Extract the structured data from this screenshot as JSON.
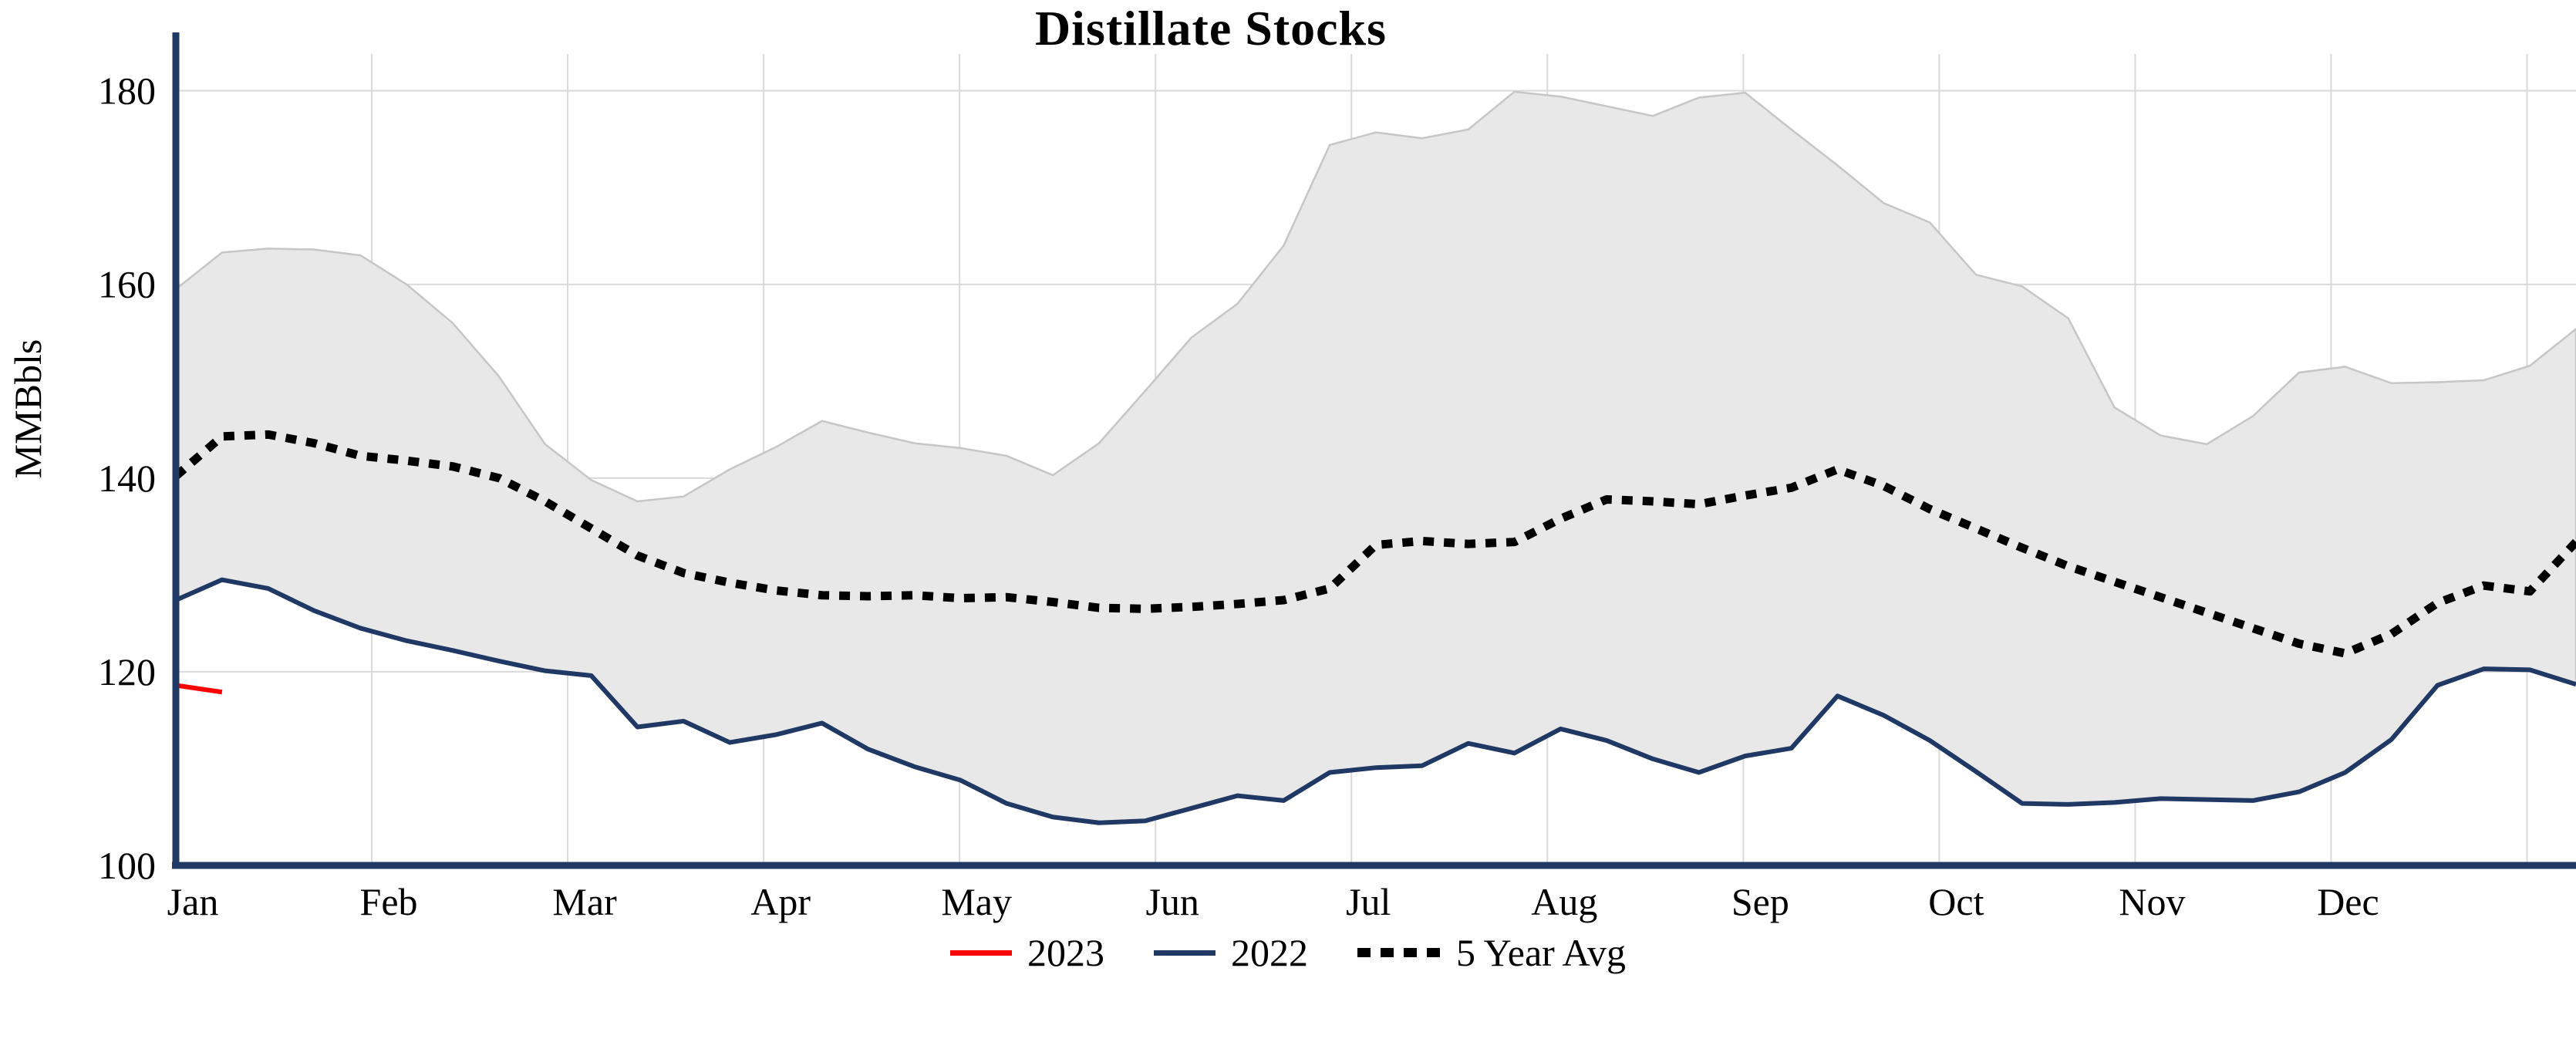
{
  "page": {
    "title": "Distillate Stocks"
  },
  "chart_data": {
    "type": "line",
    "title": "Distillate Stocks",
    "ylabel": "MMBbls",
    "ylim": [
      100,
      180
    ],
    "yticks": [
      100,
      120,
      140,
      160,
      180
    ],
    "months": [
      "Jan",
      "Feb",
      "Mar",
      "Apr",
      "May",
      "Jun",
      "Jul",
      "Aug",
      "Sep",
      "Oct",
      "Nov",
      "Dec"
    ],
    "weeks": 53,
    "grid": true,
    "grid_color": "#d9d9d9",
    "axis_color": "#1f3864",
    "legend_position": "bottom",
    "band": {
      "name": "5 Year Range",
      "fill": "#e8e8e8",
      "stroke": "#c6c6c6",
      "max": [
        159.5,
        163.3,
        163.7,
        163.6,
        163.0,
        160.0,
        156.0,
        150.5,
        143.5,
        139.8,
        137.6,
        138.1,
        140.9,
        143.2,
        145.9,
        144.7,
        143.6,
        143.1,
        142.3,
        140.3,
        143.6,
        149.0,
        154.5,
        158.0,
        164.0,
        174.4,
        175.7,
        175.1,
        176.0,
        179.9,
        179.4,
        178.4,
        177.4,
        179.3,
        179.8,
        176.0,
        172.3,
        168.4,
        166.4,
        161.0,
        159.8,
        156.5,
        147.3,
        144.4,
        143.5,
        146.4,
        150.9,
        151.5,
        149.8,
        149.9,
        150.1,
        151.6,
        155.4
      ],
      "min": [
        127.4,
        129.5,
        128.6,
        126.3,
        124.5,
        123.2,
        122.2,
        121.1,
        120.1,
        119.6,
        114.3,
        114.9,
        112.7,
        113.5,
        114.7,
        112.0,
        110.2,
        108.8,
        106.4,
        105.0,
        104.4,
        104.6,
        105.9,
        107.2,
        106.7,
        109.6,
        110.1,
        110.3,
        112.6,
        111.6,
        114.1,
        112.9,
        111.0,
        109.6,
        111.3,
        112.1,
        117.5,
        115.5,
        112.9,
        109.7,
        106.4,
        106.3,
        106.5,
        106.9,
        106.8,
        106.7,
        107.6,
        109.6,
        113.0,
        118.6,
        120.3,
        120.2,
        118.7
      ]
    },
    "series": [
      {
        "name": "2023",
        "color": "#ff0000",
        "style": "solid",
        "start_week": 0,
        "values": [
          118.6,
          117.9
        ]
      },
      {
        "name": "2022",
        "color": "#1f3864",
        "style": "solid",
        "start_week": 0,
        "values": [
          127.4,
          129.5,
          128.6,
          126.3,
          124.5,
          123.2,
          122.2,
          121.1,
          120.1,
          119.6,
          114.3,
          114.9,
          112.7,
          113.5,
          114.7,
          112.0,
          110.2,
          108.8,
          106.4,
          105.0,
          104.4,
          104.6,
          105.9,
          107.2,
          106.7,
          109.6,
          110.1,
          110.3,
          112.6,
          111.6,
          114.1,
          112.9,
          111.0,
          109.6,
          111.3,
          112.1,
          117.5,
          115.5,
          112.9,
          109.7,
          106.4,
          106.3,
          106.5,
          106.9,
          106.8,
          106.7,
          107.6,
          109.6,
          113.0,
          118.6,
          120.3,
          120.2,
          118.7
        ]
      },
      {
        "name": "5 Year Avg",
        "color": "#000000",
        "style": "dotted",
        "start_week": 0,
        "values": [
          140.2,
          144.3,
          144.5,
          143.6,
          142.3,
          141.8,
          141.2,
          140.0,
          137.6,
          134.8,
          132.0,
          130.2,
          129.2,
          128.4,
          127.9,
          127.8,
          127.9,
          127.6,
          127.7,
          127.2,
          126.6,
          126.5,
          126.7,
          127.0,
          127.4,
          128.6,
          133.1,
          133.5,
          133.2,
          133.4,
          135.8,
          137.8,
          137.6,
          137.3,
          138.2,
          139.0,
          140.9,
          139.2,
          136.8,
          134.8,
          132.8,
          130.9,
          129.3,
          127.7,
          126.1,
          124.5,
          122.9,
          121.9,
          123.9,
          127.1,
          128.9,
          128.3,
          133.4
        ]
      }
    ]
  }
}
